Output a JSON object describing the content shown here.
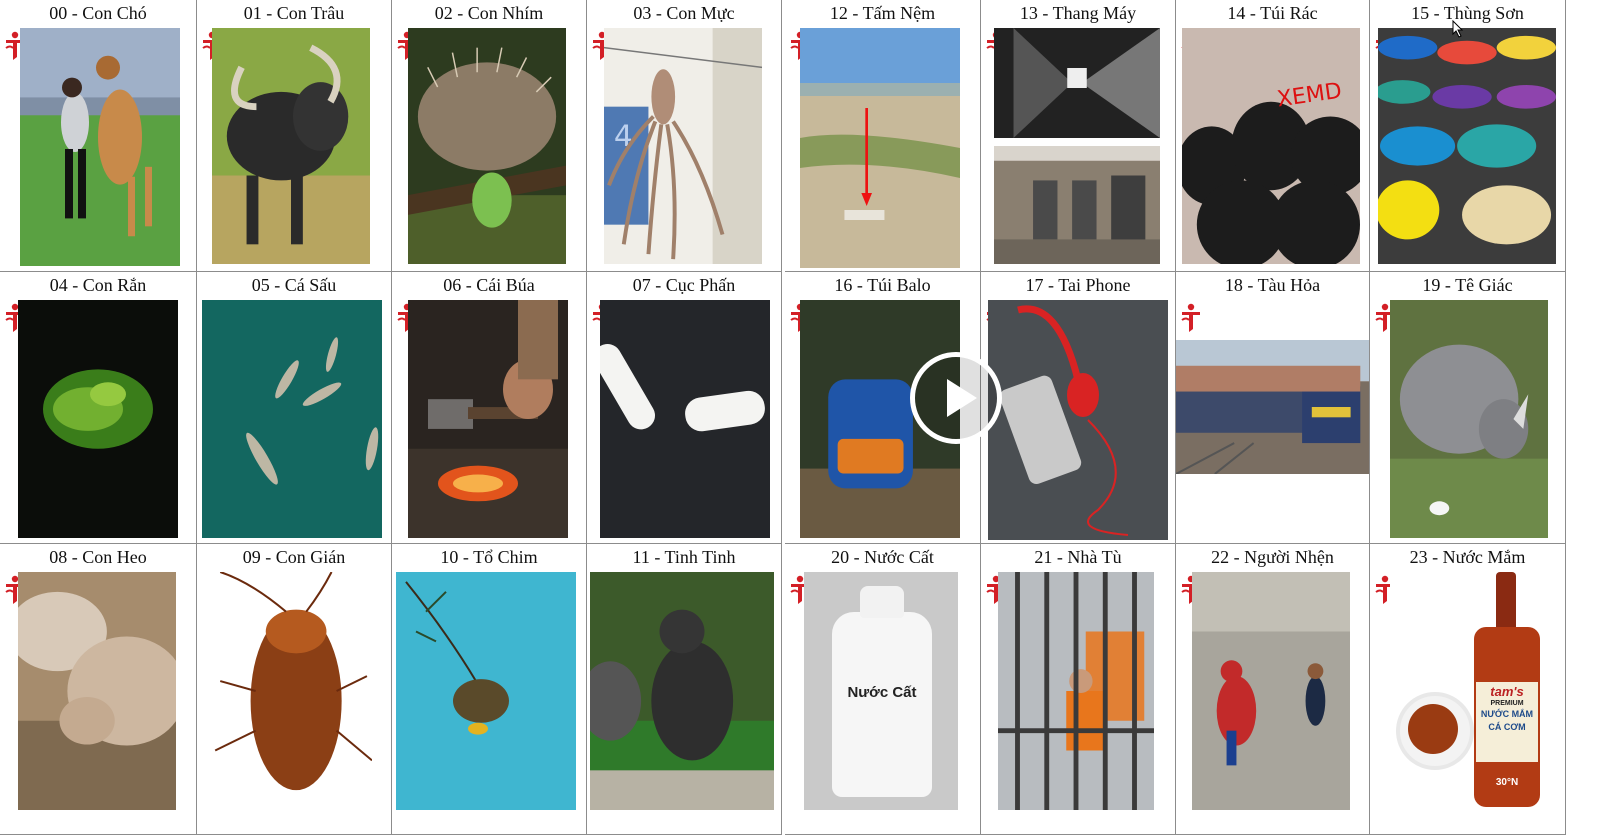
{
  "cards": [
    {
      "id": "00",
      "label": "00 - Con Chó",
      "subject": "woman with dog"
    },
    {
      "id": "01",
      "label": "01 - Con Trâu",
      "subject": "water buffalo"
    },
    {
      "id": "02",
      "label": "02 - Con Nhím",
      "subject": "porcupine"
    },
    {
      "id": "03",
      "label": "03 - Con Mực",
      "subject": "octopus"
    },
    {
      "id": "04",
      "label": "04 - Con Rắn",
      "subject": "green snake"
    },
    {
      "id": "05",
      "label": "05 - Cá Sấu",
      "subject": "crocodiles"
    },
    {
      "id": "06",
      "label": "06 - Cái Búa",
      "subject": "hammer"
    },
    {
      "id": "07",
      "label": "07 - Cục Phấn",
      "subject": "chalk"
    },
    {
      "id": "08",
      "label": "08 - Con Heo",
      "subject": "pig"
    },
    {
      "id": "09",
      "label": "09 - Con Gián",
      "subject": "cockroach"
    },
    {
      "id": "10",
      "label": "10 - Tổ Chim",
      "subject": "bird nest"
    },
    {
      "id": "11",
      "label": "11 - Tinh Tinh",
      "subject": "chimpanzee"
    },
    {
      "id": "12",
      "label": "12 - Tấm Nệm",
      "subject": "mattress"
    },
    {
      "id": "13",
      "label": "13 - Thang Máy",
      "subject": "elevator"
    },
    {
      "id": "14",
      "label": "14 - Túi Rác",
      "subject": "trash bags"
    },
    {
      "id": "15",
      "label": "15 - Thùng Sơn",
      "subject": "paint buckets"
    },
    {
      "id": "16",
      "label": "16 - Túi Balo",
      "subject": "backpack"
    },
    {
      "id": "17",
      "label": "17 - Tai Phone",
      "subject": "headphones"
    },
    {
      "id": "18",
      "label": "18 - Tàu Hỏa",
      "subject": "train"
    },
    {
      "id": "19",
      "label": "19 - Tê Giác",
      "subject": "rhinoceros"
    },
    {
      "id": "20",
      "label": "20 - Nước Cất",
      "subject": "distilled water bottle"
    },
    {
      "id": "21",
      "label": "21 - Nhà Tù",
      "subject": "prison cell"
    },
    {
      "id": "22",
      "label": "22 - Người Nhện",
      "subject": "spiderman"
    },
    {
      "id": "23",
      "label": "23 - Nước Mắm",
      "subject": "fish sauce"
    }
  ],
  "bottle_label": "Nước Cất",
  "graffiti": "XEMD",
  "fishsauce_brand": "tam's",
  "fishsauce_small": "PREMIUM",
  "fishsauce_name": "NƯỚC MẮM",
  "fishsauce_name2": "CÁ CƠM",
  "fishsauce_degree": "30°N",
  "colors": {
    "logo_red": "#d31f26",
    "grid_line": "#8c8c8c",
    "play_overlay": "#ffffff"
  }
}
